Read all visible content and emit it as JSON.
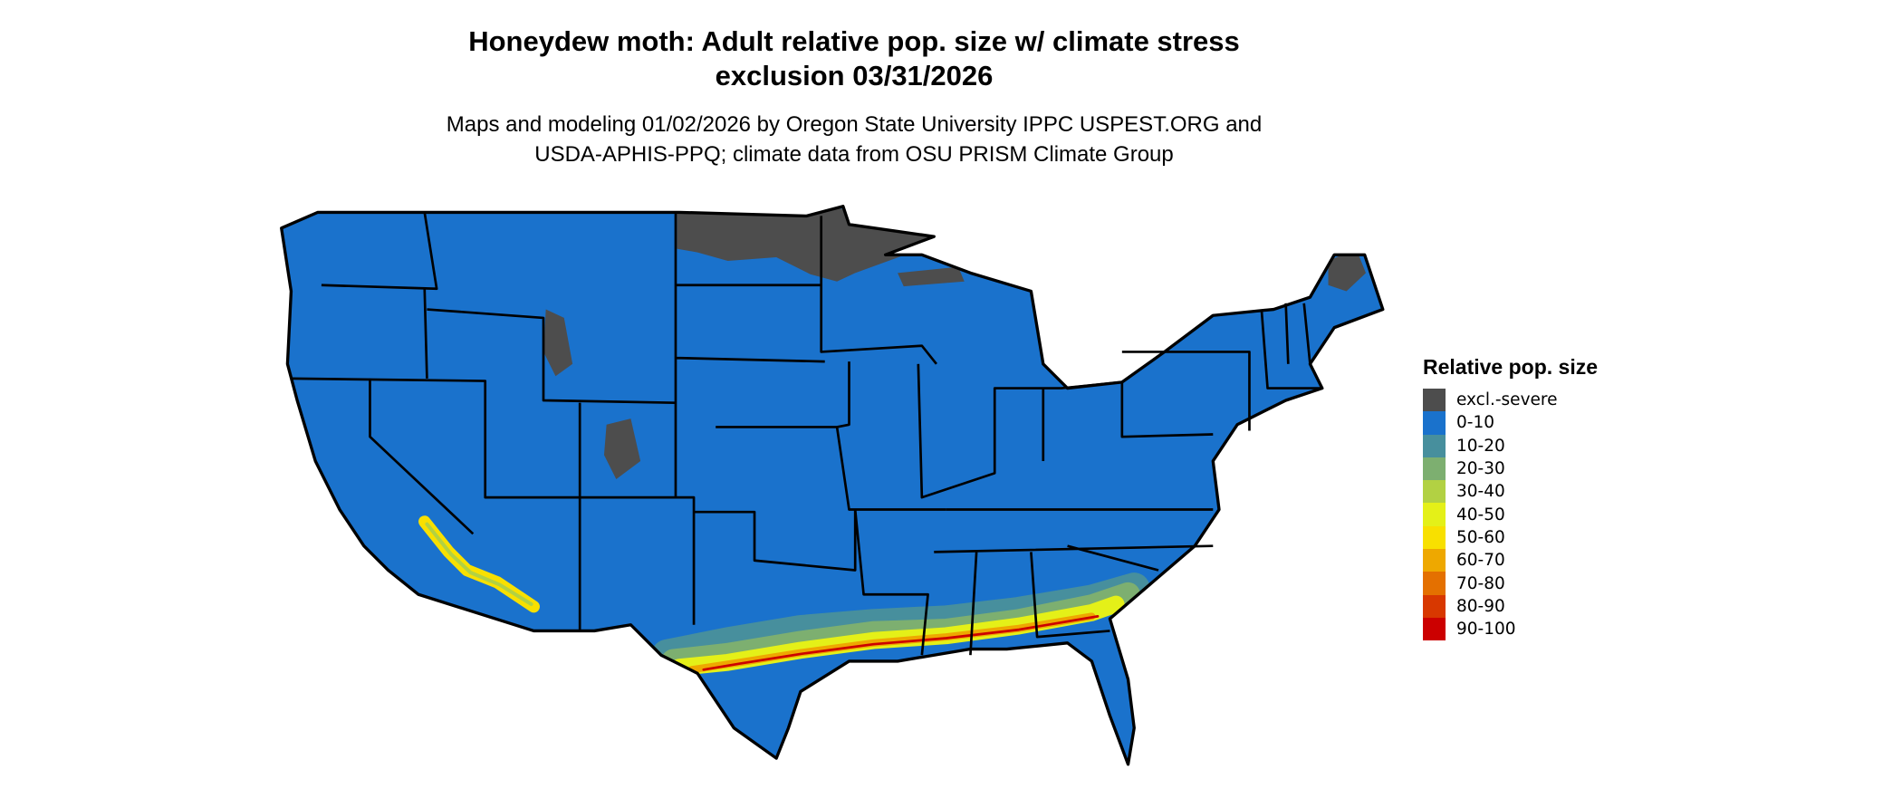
{
  "title": {
    "line1": "Honeydew moth: Adult relative pop. size w/ climate stress",
    "line2": "exclusion 03/31/2026"
  },
  "subtitle": {
    "line1": "Maps and modeling 01/02/2026 by Oregon State University IPPC USPEST.ORG and",
    "line2": "USDA-APHIS-PPQ; climate data from OSU PRISM Climate Group"
  },
  "legend": {
    "title": "Relative pop. size",
    "items": [
      {
        "label": "excl.-severe",
        "color": "#4d4d4d"
      },
      {
        "label": "0-10",
        "color": "#1a72cc"
      },
      {
        "label": "10-20",
        "color": "#478f9d"
      },
      {
        "label": "20-30",
        "color": "#7daf70"
      },
      {
        "label": "30-40",
        "color": "#b2d143"
      },
      {
        "label": "40-50",
        "color": "#e4f018"
      },
      {
        "label": "50-60",
        "color": "#f8e000"
      },
      {
        "label": "60-70",
        "color": "#eea800"
      },
      {
        "label": "70-80",
        "color": "#e47000"
      },
      {
        "label": "80-90",
        "color": "#d83800"
      },
      {
        "label": "90-100",
        "color": "#cc0000"
      }
    ]
  }
}
